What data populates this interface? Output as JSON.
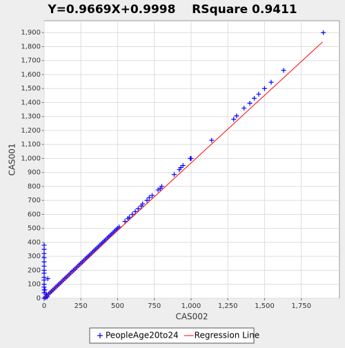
{
  "chart_data": {
    "type": "scatter",
    "title": "Y=0.9669X+0.9998    RSquare 0.9411",
    "x_label": "CAS002",
    "y_label": "CAS001",
    "xlim": [
      0,
      2010
    ],
    "ylim": [
      0,
      1985
    ],
    "xticks": [
      0,
      250,
      500,
      750,
      {
        "value": 1000,
        "label": "1,000"
      },
      {
        "value": 1250,
        "label": "1,250"
      },
      {
        "value": 1500,
        "label": "1,500"
      },
      {
        "value": 1750,
        "label": "1,750"
      }
    ],
    "yticks": [
      0,
      100,
      200,
      300,
      400,
      500,
      600,
      700,
      800,
      900,
      {
        "value": 1000,
        "label": "1,000"
      },
      {
        "value": 1100,
        "label": "1,100"
      },
      {
        "value": 1200,
        "label": "1,200"
      },
      {
        "value": 1300,
        "label": "1,300"
      },
      {
        "value": 1400,
        "label": "1,400"
      },
      {
        "value": 1500,
        "label": "1,500"
      },
      {
        "value": 1600,
        "label": "1,600"
      },
      {
        "value": 1700,
        "label": "1,700"
      },
      {
        "value": 1800,
        "label": "1,800"
      },
      {
        "value": 1900,
        "label": "1,900"
      }
    ],
    "grid": true,
    "series": [
      {
        "name": "PeopleAge20to24",
        "color": "#0000ff",
        "kind": "points",
        "x": [
          0,
          10,
          20,
          30,
          40,
          50,
          60,
          70,
          80,
          90,
          100,
          110,
          120,
          130,
          140,
          150,
          160,
          170,
          180,
          190,
          200,
          210,
          220,
          230,
          240,
          250,
          260,
          270,
          280,
          290,
          300,
          310,
          320,
          330,
          340,
          350,
          360,
          370,
          380,
          390,
          400,
          410,
          420,
          430,
          440,
          450,
          460,
          470,
          480,
          490,
          500,
          510,
          550,
          570,
          580,
          600,
          620,
          640,
          660,
          670,
          700,
          715,
          735,
          775,
          790,
          800,
          885,
          920,
          930,
          945,
          995,
          1000,
          1140,
          1290,
          1310,
          1360,
          1400,
          1430,
          1460,
          1500,
          1545,
          1630,
          1900,
          0,
          0,
          0,
          0,
          0,
          0,
          0,
          0,
          0,
          0,
          0,
          0,
          0,
          0,
          10,
          20,
          15,
          25,
          5
        ],
        "values": [
          0,
          10,
          20,
          30,
          40,
          50,
          60,
          70,
          80,
          90,
          100,
          110,
          120,
          130,
          140,
          150,
          160,
          170,
          180,
          190,
          200,
          210,
          220,
          230,
          240,
          250,
          260,
          270,
          280,
          290,
          300,
          310,
          320,
          330,
          340,
          350,
          360,
          370,
          380,
          390,
          400,
          410,
          420,
          430,
          440,
          450,
          460,
          470,
          480,
          490,
          500,
          510,
          550,
          570,
          580,
          600,
          620,
          640,
          660,
          675,
          700,
          720,
          735,
          775,
          785,
          800,
          885,
          920,
          935,
          950,
          1000,
          1000,
          1130,
          1280,
          1305,
          1360,
          1395,
          1430,
          1460,
          1500,
          1545,
          1630,
          1900,
          380,
          350,
          320,
          290,
          260,
          230,
          200,
          180,
          150,
          130,
          100,
          80,
          60,
          40,
          5,
          10,
          30,
          140,
          60
        ]
      },
      {
        "name": "Regression Line",
        "color": "#ff0000",
        "kind": "line",
        "x": [
          0,
          1895
        ],
        "values": [
          1.0,
          1833.3
        ]
      }
    ]
  }
}
